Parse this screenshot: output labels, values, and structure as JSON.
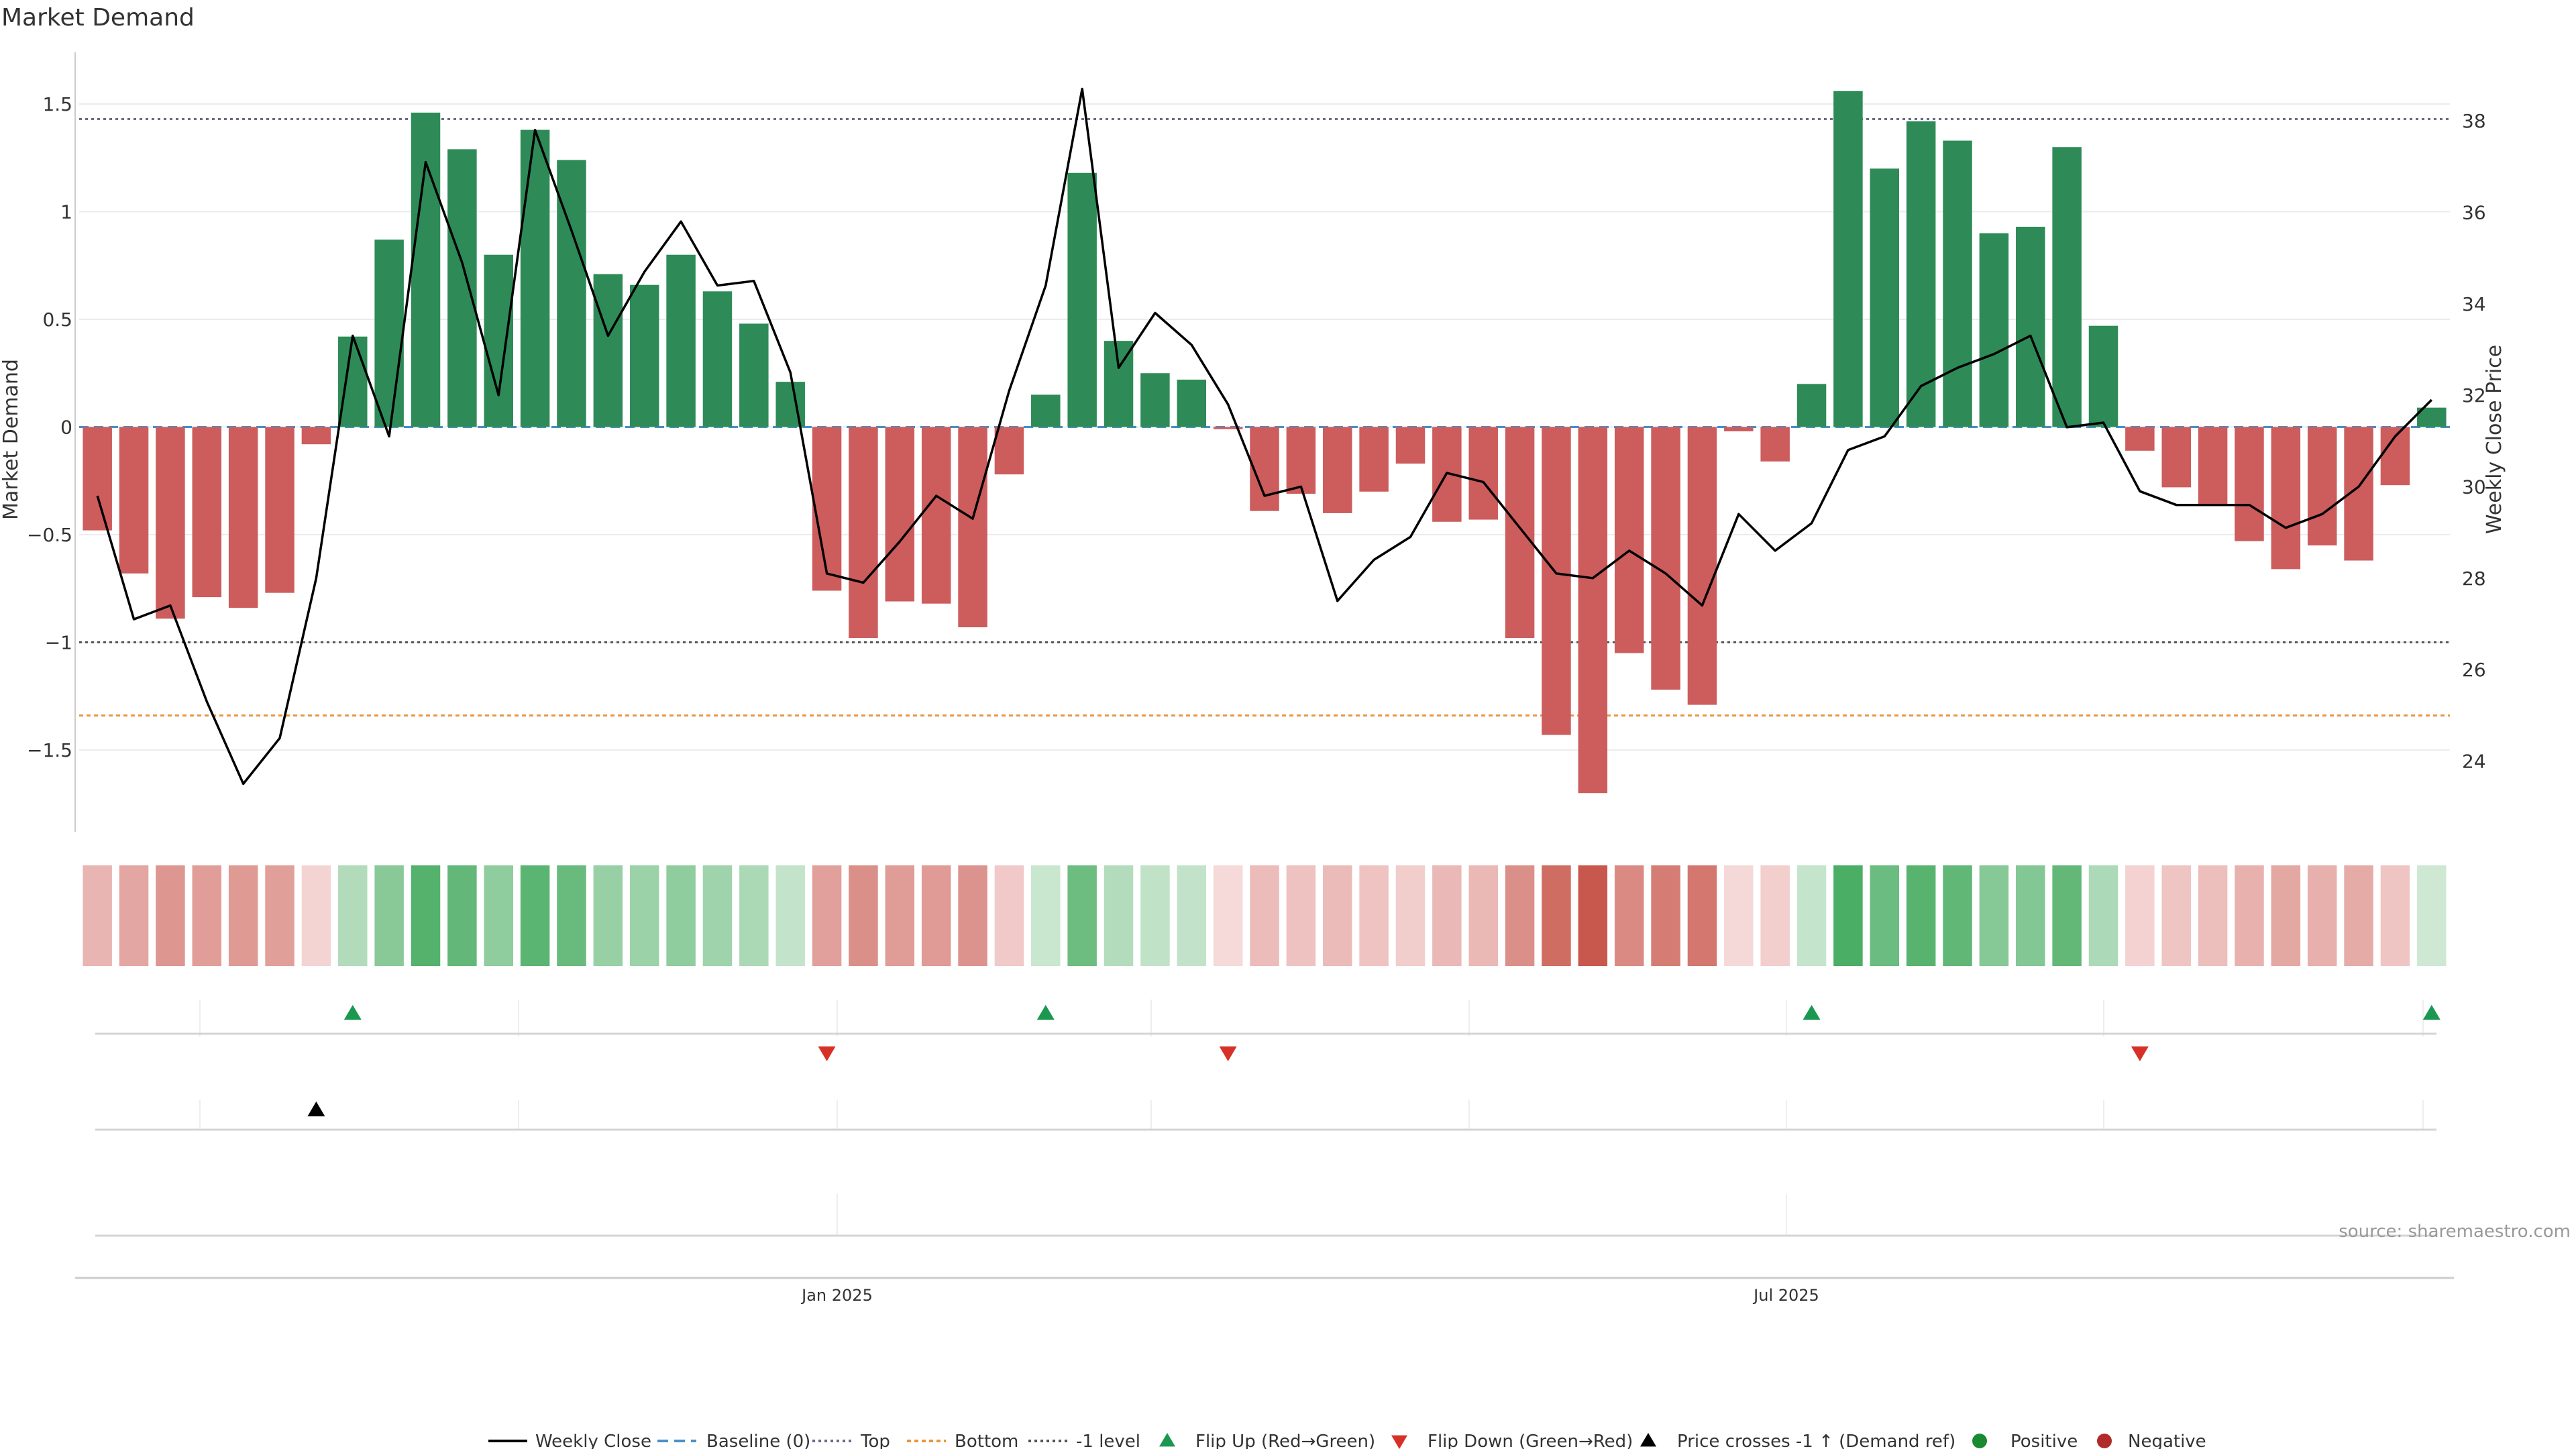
{
  "title": "Market Demand",
  "source": "source: sharemaestro.com",
  "colors": {
    "positive_bar": "#2e8b57",
    "negative_bar": "#cd5c5c",
    "price_line": "#000000",
    "top_line": "#6b6b8a",
    "bottom_line": "#e8963c",
    "level_line": "#555555",
    "flip_up": "#1a9850",
    "flip_down": "#d73027",
    "cross": "#000000",
    "grid": "#ececec"
  },
  "chart_data": {
    "type": "bar",
    "x_axis": {
      "tick_labels": [
        "Jan 2025",
        "Jul 2025"
      ]
    },
    "left_axis": {
      "label": "Market Demand",
      "ylim": [
        -1.88,
        1.74
      ],
      "ticks": [
        -1.5,
        -1,
        -0.5,
        0,
        0.5,
        1,
        1.5
      ],
      "tick_labels": [
        "−1.5",
        "−1",
        "−0.5",
        "0",
        "0.5",
        "1",
        "1.5"
      ]
    },
    "right_axis": {
      "label": "Weekly Close Price",
      "ylim": [
        22.45,
        39.5
      ],
      "ticks": [
        24,
        26,
        28,
        30,
        32,
        34,
        36,
        38
      ],
      "tick_labels": [
        "24",
        "26",
        "28",
        "30",
        "32",
        "34",
        "36",
        "38"
      ]
    },
    "reference_lines": {
      "baseline": 0,
      "top": 1.43,
      "bottom": -1.34,
      "minus_one": -1
    },
    "demand": [
      -0.48,
      -0.68,
      -0.89,
      -0.79,
      -0.84,
      -0.77,
      -0.08,
      0.42,
      0.87,
      1.46,
      1.29,
      0.8,
      1.38,
      1.24,
      0.71,
      0.66,
      0.8,
      0.63,
      0.48,
      0.21,
      -0.76,
      -0.98,
      -0.81,
      -0.82,
      -0.93,
      -0.22,
      0.15,
      1.18,
      0.4,
      0.25,
      0.22,
      -0.01,
      -0.39,
      -0.31,
      -0.4,
      -0.3,
      -0.17,
      -0.44,
      -0.43,
      -0.98,
      -1.43,
      -1.7,
      -1.05,
      -1.22,
      -1.29,
      -0.02,
      -0.16,
      0.2,
      1.56,
      1.2,
      1.42,
      1.33,
      0.9,
      0.93,
      1.3,
      0.47,
      -0.11,
      -0.28,
      -0.36,
      -0.53,
      -0.66,
      -0.55,
      -0.62,
      -0.27,
      0.09
    ],
    "price": [
      29.8,
      27.1,
      27.4,
      25.3,
      23.5,
      24.5,
      28.0,
      33.3,
      31.1,
      37.1,
      34.9,
      32.0,
      37.8,
      35.6,
      33.3,
      34.7,
      35.8,
      34.4,
      34.5,
      32.5,
      28.1,
      27.9,
      28.8,
      29.8,
      29.3,
      32.1,
      34.4,
      38.7,
      32.6,
      33.8,
      33.1,
      31.8,
      29.8,
      30.0,
      27.5,
      28.4,
      28.9,
      30.3,
      30.1,
      29.1,
      28.1,
      28.0,
      28.6,
      28.1,
      27.4,
      29.4,
      28.6,
      29.2,
      30.8,
      31.1,
      32.2,
      32.6,
      32.9,
      33.3,
      31.3,
      31.4,
      29.9,
      29.6,
      29.6,
      29.6,
      29.1,
      29.4,
      30.0,
      31.1,
      31.9
    ],
    "flip_up_idx": [
      7,
      26,
      47,
      64
    ],
    "flip_down_idx": [
      20,
      31,
      56
    ],
    "cross_idx": [
      6
    ],
    "legend": [
      "Weekly Close",
      "Baseline (0)",
      "Top",
      "Bottom",
      "-1 level",
      "Flip Up (Red→Green)",
      "Flip Down (Green→Red)",
      "Price crosses -1 ↑ (Demand ref)",
      "Positive",
      "Negative"
    ],
    "legend_position": "bottom"
  }
}
